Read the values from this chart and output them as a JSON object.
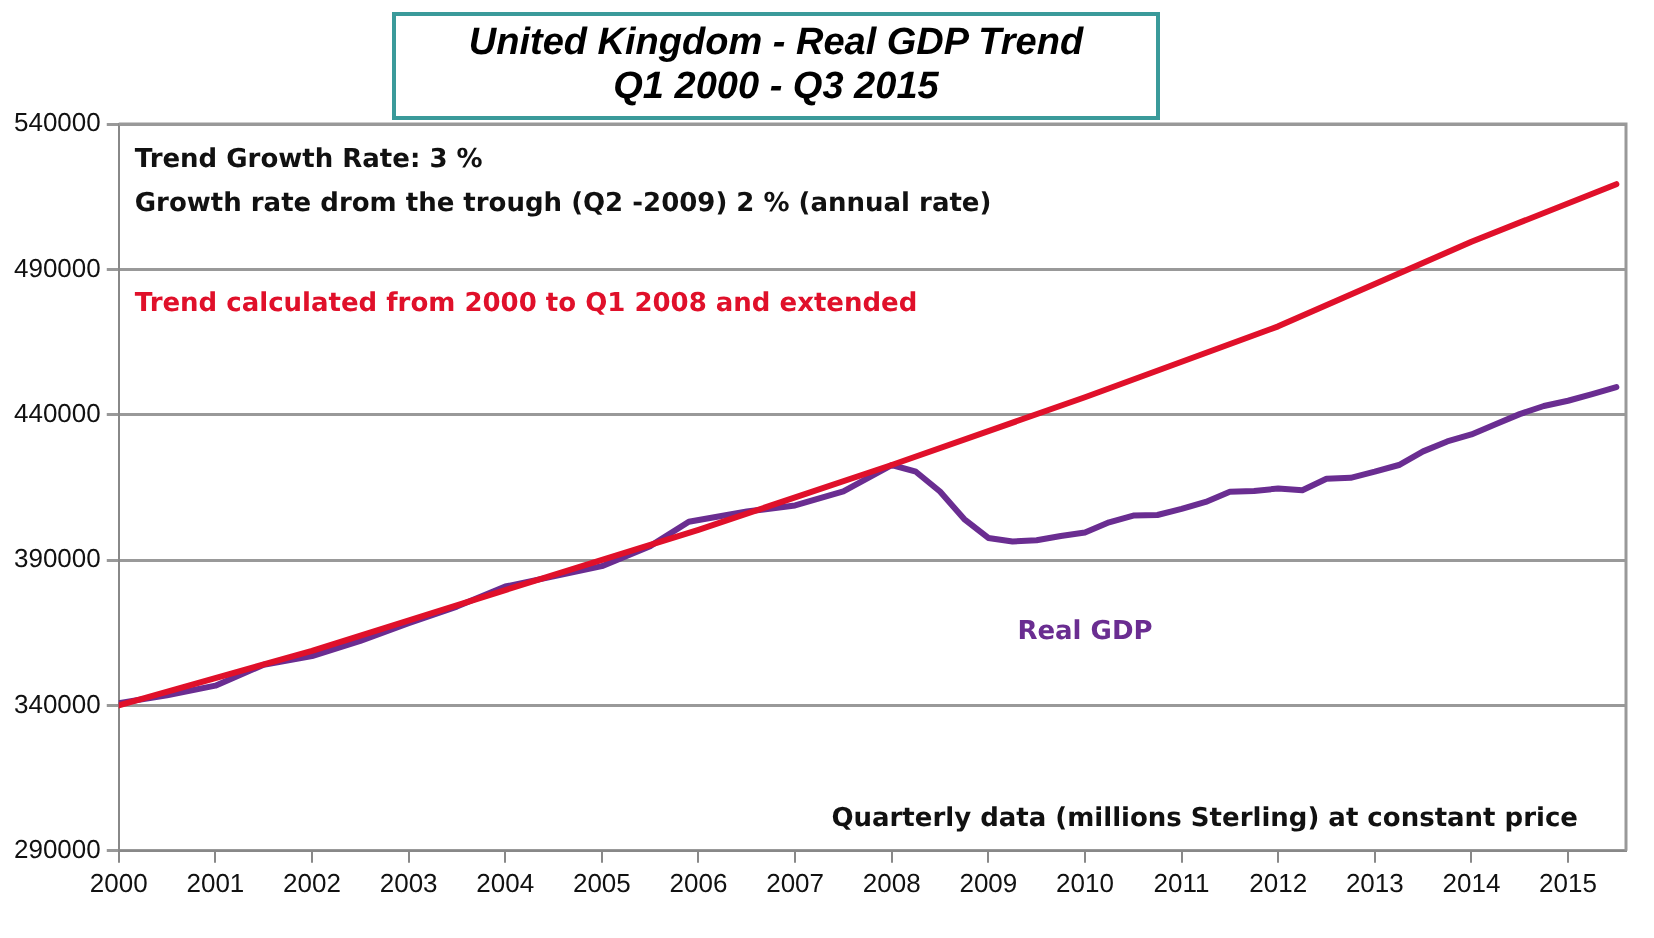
{
  "chart_data": {
    "type": "line",
    "title": "United Kingdom - Real GDP Trend",
    "subtitle": "Q1 2000 - Q3 2015",
    "annotations": [
      "Trend Growth Rate: 3 %",
      "Growth rate drom the trough (Q2 -2009) 2 % (annual rate)",
      "Trend calculated from 2000 to Q1 2008 and extended",
      "Quarterly data (millions Sterling) at constant price"
    ],
    "series": [
      {
        "color": "#e0102a",
        "x": [
          2000,
          2002,
          2004,
          2006,
          2008,
          2010,
          2012,
          2014,
          2015.5
        ],
        "values": [
          340000,
          358800,
          379700,
          400400,
          422700,
          446000,
          470400,
          499500,
          519300
        ]
      },
      {
        "name": "Real GDP",
        "color": "#6a2d91",
        "x": [
          2000,
          2000.5,
          2001,
          2001.5,
          2002,
          2002.5,
          2003,
          2003.5,
          2004,
          2004.5,
          2005,
          2005.5,
          2005.9,
          2006.5,
          2007,
          2007.5,
          2008,
          2008.25,
          2008.5,
          2008.75,
          2009,
          2009.25,
          2009.5,
          2009.75,
          2010,
          2010.25,
          2010.5,
          2010.75,
          2011,
          2011.25,
          2011.5,
          2011.75,
          2012,
          2012.25,
          2012.5,
          2012.75,
          2013,
          2013.25,
          2013.5,
          2013.75,
          2014,
          2014.25,
          2014.5,
          2014.75,
          2015,
          2015.25,
          2015.5
        ],
        "values": [
          340800,
          343500,
          346800,
          354000,
          357000,
          362200,
          368300,
          374000,
          380900,
          384400,
          387900,
          394800,
          403200,
          406700,
          408800,
          413600,
          422700,
          420400,
          413600,
          404100,
          397600,
          396400,
          396800,
          398300,
          399500,
          403000,
          405300,
          405500,
          407600,
          410000,
          413500,
          413800,
          414600,
          414000,
          418000,
          418300,
          420400,
          422700,
          427400,
          430800,
          433200,
          436700,
          440200,
          443000,
          444800,
          447100,
          449500
        ]
      }
    ],
    "xlim": [
      2000,
      2015.6
    ],
    "xticks": [
      2000,
      2001,
      2002,
      2003,
      2004,
      2005,
      2006,
      2007,
      2008,
      2009,
      2010,
      2011,
      2012,
      2013,
      2014,
      2015
    ],
    "ylim": [
      290000,
      540000
    ],
    "yticks": [
      290000,
      340000,
      390000,
      440000,
      490000,
      540000
    ],
    "grid": "y",
    "legend": false,
    "marker": "none",
    "line_style": "solid"
  }
}
